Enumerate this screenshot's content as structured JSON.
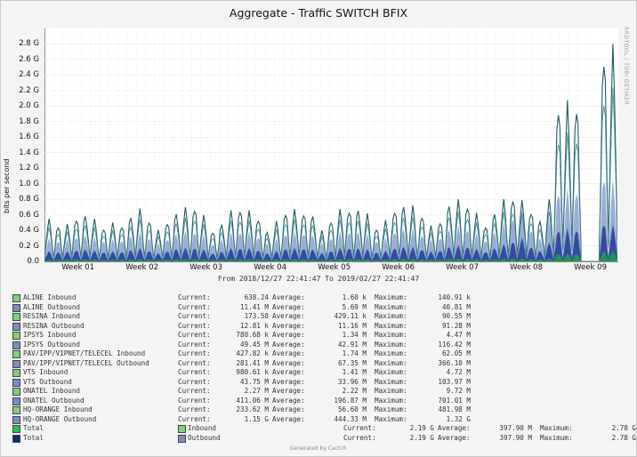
{
  "watermark": "RRDTOOL / TOBI OETIKER",
  "generator": "Generated by Cacti®",
  "chart_data": {
    "type": "area",
    "title": "Aggregate - Traffic SWITCH BFIX",
    "ylabel": "bits per second",
    "range_text": "From 2018/12/27 22:41:47 To 2019/02/27 22:41:47",
    "ylim": [
      0,
      3.0
    ],
    "yunit": "G",
    "yticks": [
      "0.0",
      "0.2 G",
      "0.4 G",
      "0.6 G",
      "0.8 G",
      "1.0 G",
      "1.2 G",
      "1.4 G",
      "1.6 G",
      "1.8 G",
      "2.0 G",
      "2.2 G",
      "2.4 G",
      "2.6 G",
      "2.8 G"
    ],
    "xticks": [
      "Week 01",
      "Week 02",
      "Week 03",
      "Week 04",
      "Week 05",
      "Week 06",
      "Week 07",
      "Week 08",
      "Week 09"
    ],
    "grid": true,
    "colors": {
      "inbound": "#6fa8d8",
      "outbound": "#1f3f8f",
      "green": "#1e9b4d",
      "teal": "#2a6a6e",
      "total_in": "#22c04a",
      "total_out": "#0a2a7a"
    },
    "series": [
      {
        "name": "Total Inbound (envelope)",
        "color": "#1e5b66",
        "daily_peaks": [
          0.55,
          0.48,
          0.5,
          0.6,
          0.62,
          0.55,
          0.45,
          0.52,
          0.5,
          0.6,
          0.68,
          0.55,
          0.42,
          0.55,
          0.65,
          0.7,
          0.72,
          0.62,
          0.42,
          0.5,
          0.66,
          0.7,
          0.68,
          0.6,
          0.4,
          0.52,
          0.66,
          0.7,
          0.68,
          0.62,
          0.4,
          0.55,
          0.7,
          0.72,
          0.7,
          0.62,
          0.45,
          0.55,
          0.72,
          0.75,
          0.72,
          0.62,
          0.48,
          0.56,
          0.76,
          0.8,
          0.75,
          0.65,
          0.5,
          0.65,
          0.8,
          0.85,
          0.82,
          0.7,
          0.55,
          0.8,
          2.1,
          2.15,
          2.2,
          0.0,
          0.0,
          2.8,
          2.9
        ]
      },
      {
        "name": "Total Outbound (envelope)",
        "color": "#8a9fd0",
        "daily_peaks": [
          0.3,
          0.28,
          0.3,
          0.35,
          0.36,
          0.32,
          0.28,
          0.3,
          0.3,
          0.35,
          0.38,
          0.32,
          0.25,
          0.32,
          0.38,
          0.4,
          0.4,
          0.36,
          0.25,
          0.3,
          0.38,
          0.4,
          0.4,
          0.35,
          0.25,
          0.3,
          0.38,
          0.4,
          0.4,
          0.36,
          0.25,
          0.32,
          0.4,
          0.42,
          0.4,
          0.36,
          0.28,
          0.32,
          0.42,
          0.44,
          0.42,
          0.36,
          0.3,
          0.34,
          0.44,
          0.46,
          0.44,
          0.38,
          0.3,
          0.4,
          0.5,
          0.6,
          0.7,
          0.45,
          0.32,
          0.55,
          0.95,
          0.98,
          1.0,
          0.0,
          0.0,
          1.15,
          1.1
        ]
      }
    ],
    "legend": [
      {
        "label": "ALINE Inbound",
        "type": "in",
        "current": "638.24",
        "average": "1.60 k",
        "maximum": "140.91 k"
      },
      {
        "label": "ALINE Outbound",
        "type": "out",
        "current": "11.41 M",
        "average": "5.69 M",
        "maximum": "40.81 M"
      },
      {
        "label": "RESINA Inbound",
        "type": "in",
        "current": "173.58",
        "average": "429.11 k",
        "maximum": "90.55 M"
      },
      {
        "label": "RESINA Outbound",
        "type": "out",
        "current": "12.81 k",
        "average": "11.16 M",
        "maximum": "91.28 M"
      },
      {
        "label": "IPSYS Inbound",
        "type": "in",
        "current": "780.68 k",
        "average": "1.34 M",
        "maximum": "4.47 M"
      },
      {
        "label": "IPSYS Outbound",
        "type": "out",
        "current": "49.45 M",
        "average": "42.91 M",
        "maximum": "116.42 M"
      },
      {
        "label": "PAV/IPP/VIPNET/TELECEL Inbound",
        "type": "in",
        "current": "427.82 k",
        "average": "1.74 M",
        "maximum": "62.05 M"
      },
      {
        "label": "PAV/IPP/VIPNET/TELECEL Outbound",
        "type": "out",
        "current": "281.41 M",
        "average": "67.35 M",
        "maximum": "366.10 M"
      },
      {
        "label": "VTS Inbound",
        "type": "in",
        "current": "980.61 k",
        "average": "1.41 M",
        "maximum": "4.72 M"
      },
      {
        "label": "VTS Outbound",
        "type": "out",
        "current": "43.75 M",
        "average": "33.96 M",
        "maximum": "103.97 M"
      },
      {
        "label": "ONATEL Inbound",
        "type": "in",
        "current": "2.27 M",
        "average": "2.22 M",
        "maximum": "9.72 M"
      },
      {
        "label": "ONATEL Outbound",
        "type": "out",
        "current": "411.06 M",
        "average": "196.87 M",
        "maximum": "701.01 M"
      },
      {
        "label": "HQ-ORANGE Inbound",
        "type": "in",
        "current": "233.62 M",
        "average": "56.60 M",
        "maximum": "481.98 M"
      },
      {
        "label": "HQ-ORANGE Outbound",
        "type": "out",
        "current": "1.15 G",
        "average": "444.33 M",
        "maximum": "1.32 G"
      }
    ],
    "totals": [
      {
        "label": "Total",
        "right": "Inbound",
        "color": "#22c04a",
        "current": "2.19 G",
        "average": "397.90 M",
        "maximum": "2.78 G"
      },
      {
        "label": "Total",
        "right": "Outbound",
        "color": "#0a2a7a",
        "current": "2.19 G",
        "average": "397.90 M",
        "maximum": "2.78 G"
      }
    ],
    "captions": {
      "current": "Current:",
      "average": "Average:",
      "maximum": "Maximum:"
    },
    "legend_colors": {
      "in": "#7ed07e",
      "out": "#7c8cc0"
    }
  }
}
